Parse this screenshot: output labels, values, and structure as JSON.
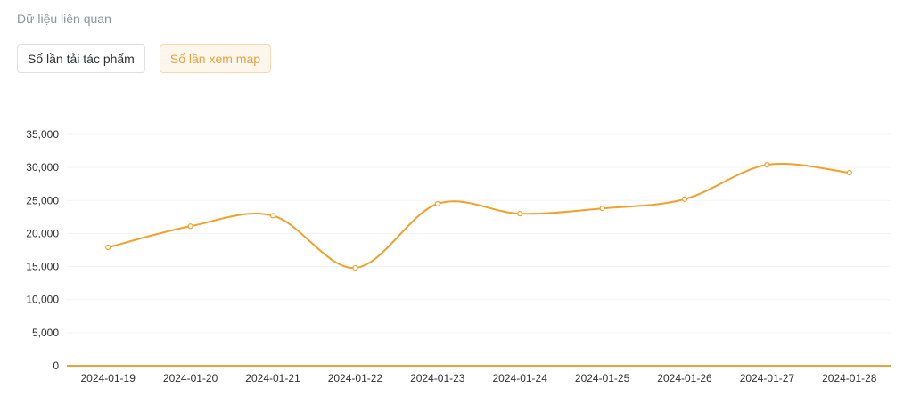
{
  "section": {
    "title": "Dữ liệu liên quan"
  },
  "tabs": [
    {
      "label": "Số lần tải tác phẩm",
      "active": false
    },
    {
      "label": "Số lần xem map",
      "active": true
    }
  ],
  "colors": {
    "series": "#f0a02b",
    "axis": "#e6a23c",
    "grid": "#f3f3f3",
    "tab_active_text": "#e6a23c"
  },
  "chart_data": {
    "type": "line",
    "smooth": true,
    "x": [
      "2024-01-19",
      "2024-01-20",
      "2024-01-21",
      "2024-01-22",
      "2024-01-23",
      "2024-01-24",
      "2024-01-25",
      "2024-01-26",
      "2024-01-27",
      "2024-01-28"
    ],
    "series": [
      {
        "values": [
          17900,
          21100,
          22700,
          14800,
          24500,
          23000,
          23800,
          25200,
          30400,
          29200
        ]
      }
    ],
    "ylim": [
      0,
      35000
    ],
    "yticks": [
      0,
      5000,
      10000,
      15000,
      20000,
      25000,
      30000,
      35000
    ],
    "ytick_labels": [
      "0",
      "5,000",
      "10,000",
      "15,000",
      "20,000",
      "25,000",
      "30,000",
      "35,000"
    ],
    "grid": true,
    "title": "",
    "xlabel": "",
    "ylabel": ""
  }
}
